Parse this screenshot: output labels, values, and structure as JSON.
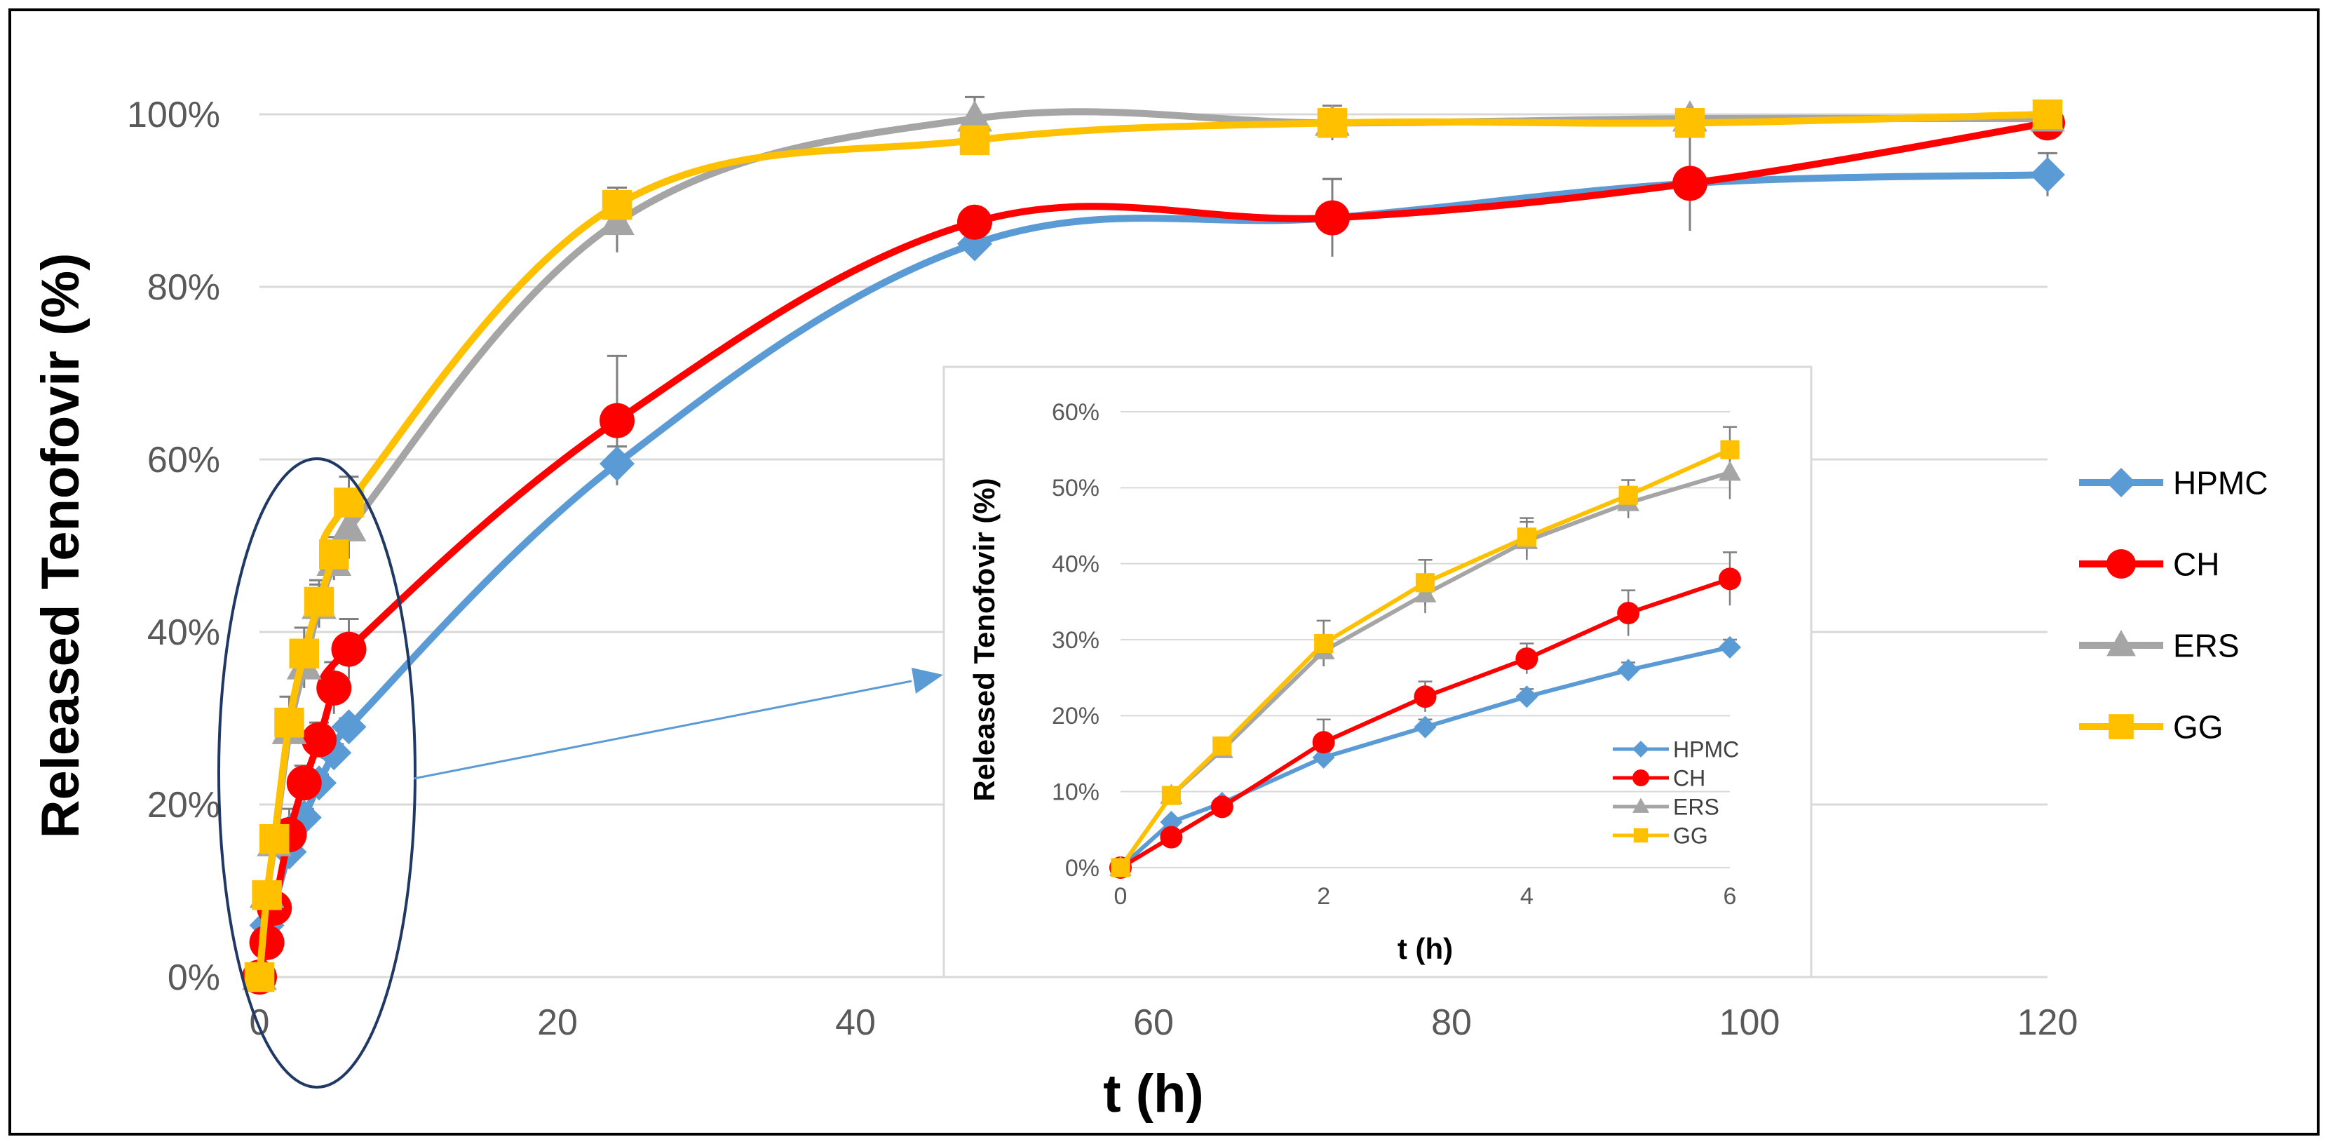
{
  "chart_data": [
    {
      "type": "line",
      "title": "",
      "xlabel": "t (h)",
      "ylabel": "Released Tenofovir (%)",
      "xlim": [
        0,
        120
      ],
      "ylim": [
        0,
        100
      ],
      "xticks": [
        "0",
        "20",
        "40",
        "60",
        "80",
        "100",
        "120"
      ],
      "yticks": [
        "0%",
        "20%",
        "40%",
        "60%",
        "80%",
        "100%"
      ],
      "grid": "horizontal",
      "legend": "right",
      "x": [
        0,
        0.5,
        1,
        2,
        3,
        4,
        5,
        6,
        24,
        48,
        72,
        96,
        120
      ],
      "series": [
        {
          "name": "HPMC",
          "color": "#5B9BD5",
          "marker": "diamond",
          "values": [
            0,
            6,
            8.5,
            14.5,
            18.5,
            22.5,
            26,
            29,
            59.5,
            85,
            88,
            92,
            93
          ],
          "errors": [
            0,
            0.5,
            0.5,
            0.8,
            1,
            1,
            1,
            1,
            2,
            1.5,
            4.5,
            1,
            2.5
          ]
        },
        {
          "name": "CH",
          "color": "#FF0000",
          "marker": "circle",
          "values": [
            0,
            4,
            8,
            16.5,
            22.5,
            27.5,
            33.5,
            38,
            64.5,
            87.5,
            88,
            92,
            99
          ],
          "errors": [
            0,
            0.5,
            0.5,
            3,
            2,
            2,
            3,
            3.5,
            7.5,
            1,
            4.5,
            5.5,
            1
          ]
        },
        {
          "name": "ERS",
          "color": "#A5A5A5",
          "marker": "triangle",
          "values": [
            0,
            9.5,
            15.5,
            28.5,
            36,
            43,
            48,
            52,
            87.5,
            99.5,
            99,
            99.5,
            99.5
          ],
          "errors": [
            0,
            0.5,
            0.5,
            2,
            2.5,
            2.5,
            2,
            3.5,
            3.5,
            2.5,
            2,
            1,
            1
          ]
        },
        {
          "name": "GG",
          "color": "#FFC000",
          "marker": "square",
          "values": [
            0,
            9.5,
            16,
            29.5,
            37.5,
            43.5,
            49,
            55,
            89.5,
            97,
            99,
            99,
            100
          ],
          "errors": [
            0,
            0.5,
            0.5,
            3,
            3,
            2.5,
            2,
            3,
            2,
            1,
            1,
            1,
            0.5
          ]
        }
      ]
    },
    {
      "type": "line",
      "title": "",
      "xlabel": "t (h)",
      "ylabel": "Released Tenofovir (%)",
      "xlim": [
        0,
        6
      ],
      "ylim": [
        0,
        60
      ],
      "xticks": [
        "0",
        "2",
        "4",
        "6"
      ],
      "yticks": [
        "0%",
        "10%",
        "20%",
        "30%",
        "40%",
        "50%",
        "60%"
      ],
      "grid": "horizontal",
      "legend": "bottom-right",
      "x": [
        0,
        0.5,
        1,
        2,
        3,
        4,
        5,
        6
      ],
      "series": [
        {
          "name": "HPMC",
          "color": "#5B9BD5",
          "marker": "diamond",
          "values": [
            0,
            6,
            8.5,
            14.5,
            18.5,
            22.5,
            26,
            29
          ],
          "errors": [
            0,
            0.5,
            0.5,
            0.8,
            1,
            1,
            1,
            1
          ]
        },
        {
          "name": "CH",
          "color": "#FF0000",
          "marker": "circle",
          "values": [
            0,
            4,
            8,
            16.5,
            22.5,
            27.5,
            33.5,
            38
          ],
          "errors": [
            0,
            0.5,
            0.5,
            3,
            2,
            2,
            3,
            3.5
          ]
        },
        {
          "name": "ERS",
          "color": "#A5A5A5",
          "marker": "triangle",
          "values": [
            0,
            9.5,
            15.5,
            28.5,
            36,
            43,
            48,
            52
          ],
          "errors": [
            0,
            0.5,
            0.5,
            2,
            2.5,
            2.5,
            2,
            3.5
          ]
        },
        {
          "name": "GG",
          "color": "#FFC000",
          "marker": "square",
          "values": [
            0,
            9.5,
            16,
            29.5,
            37.5,
            43.5,
            49,
            55
          ],
          "errors": [
            0,
            0.5,
            0.5,
            3,
            3,
            2.5,
            2,
            3
          ]
        }
      ]
    }
  ]
}
